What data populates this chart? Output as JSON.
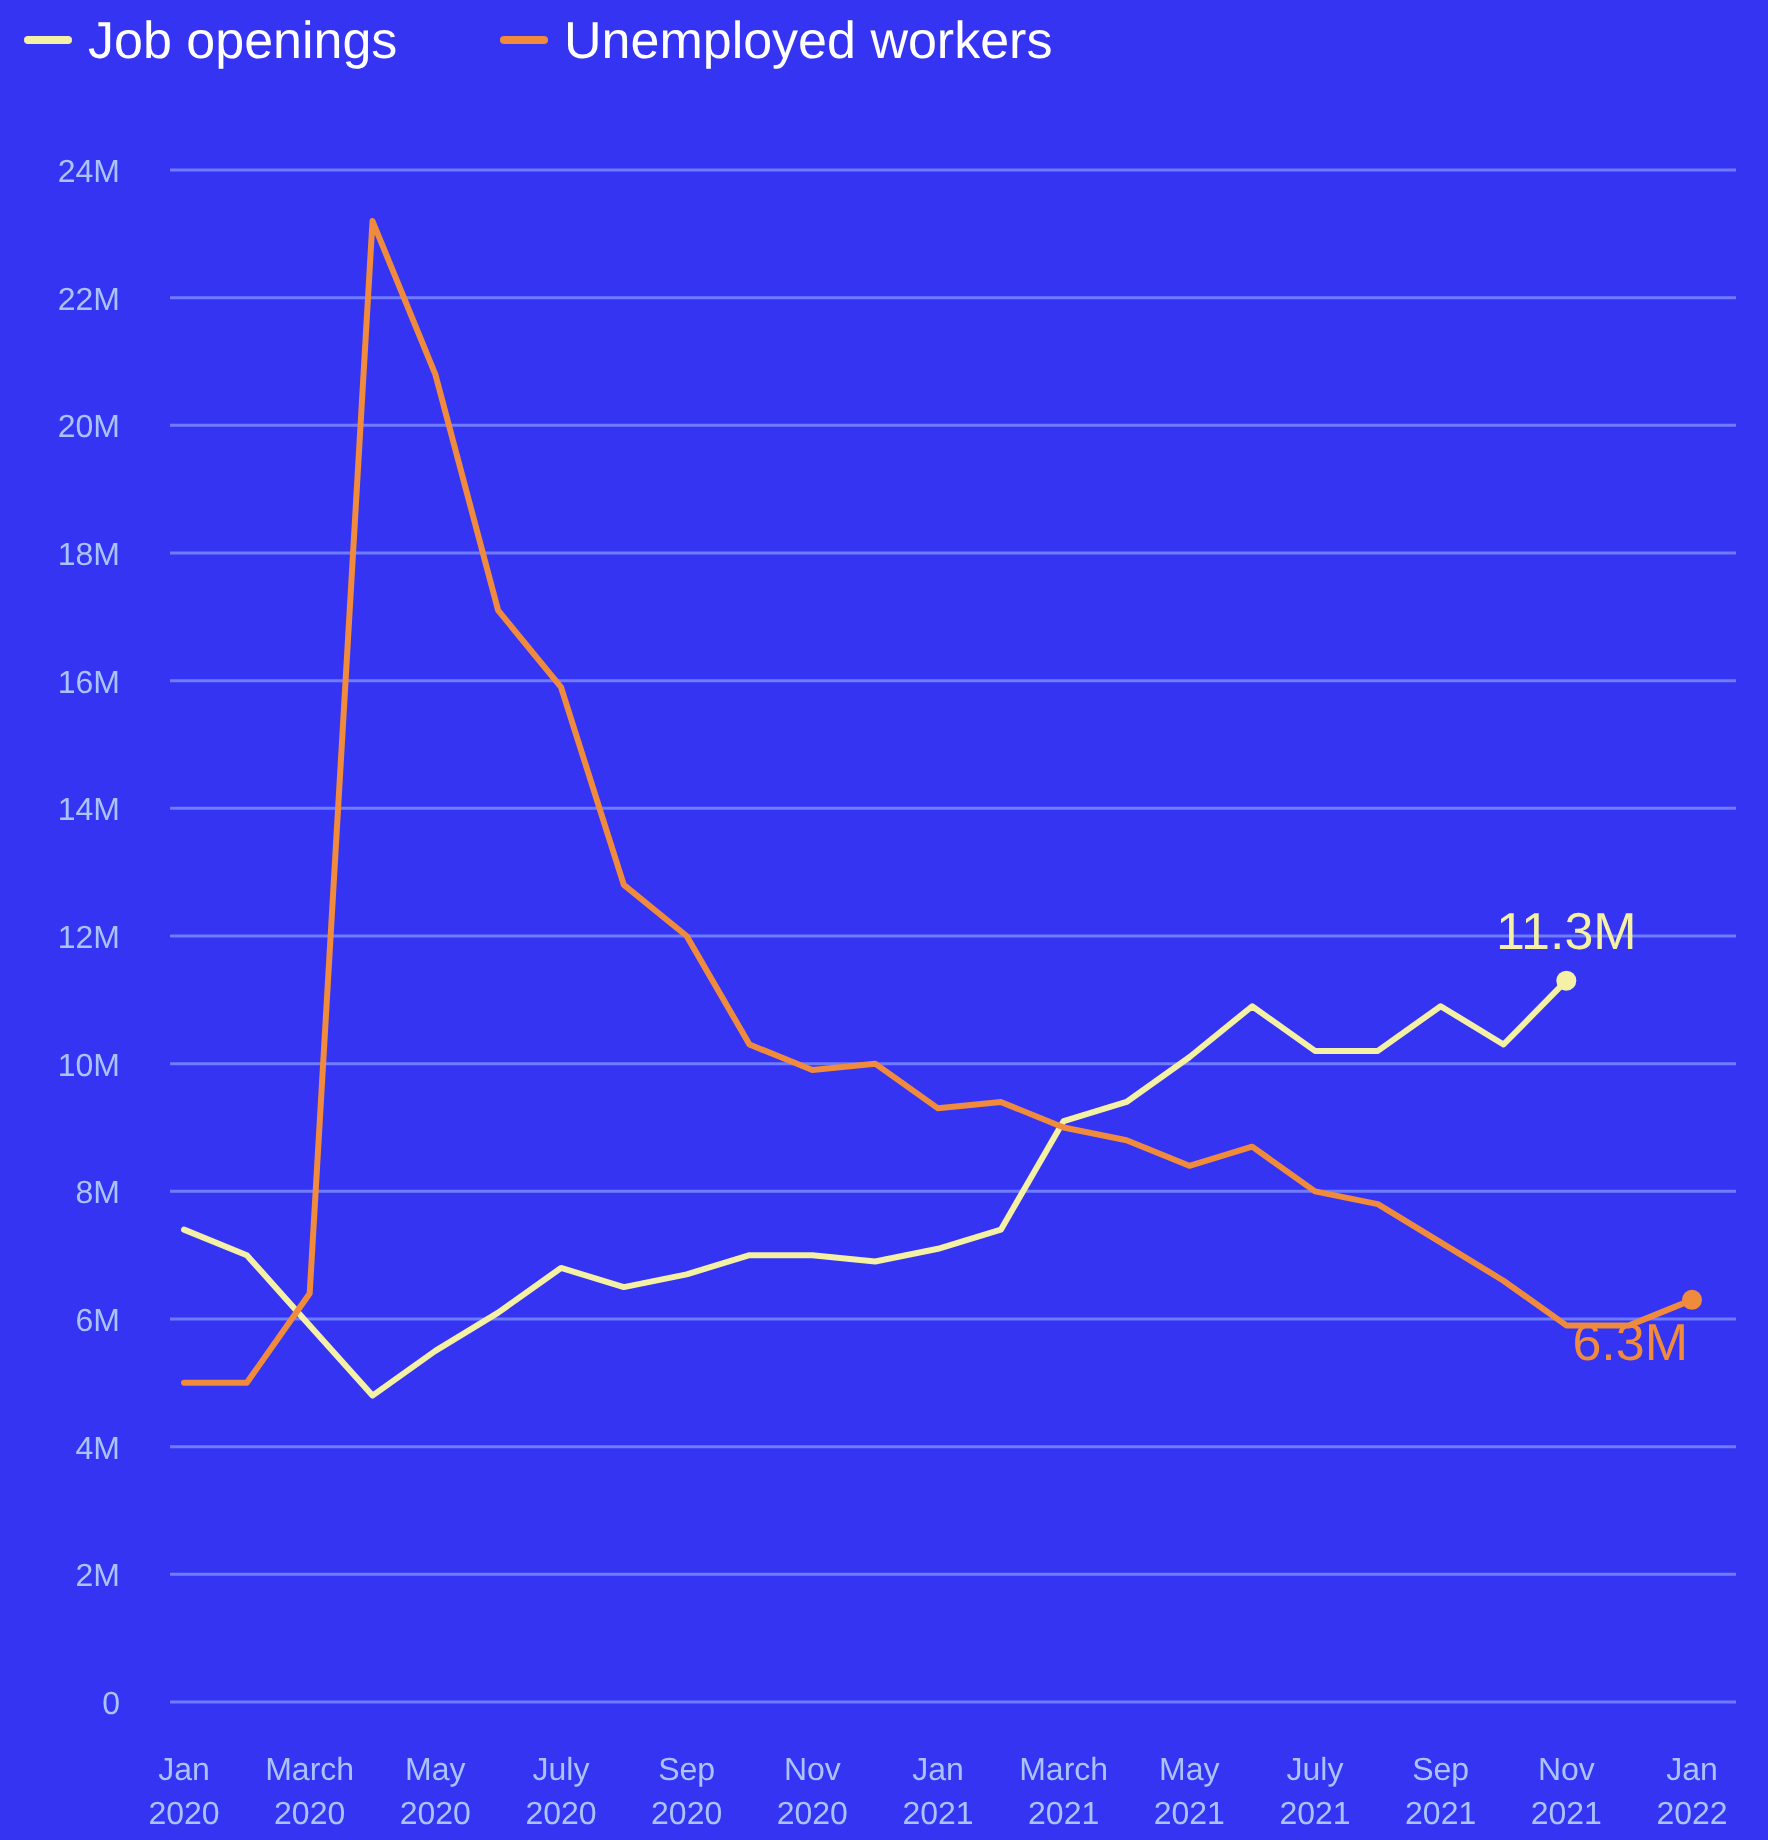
{
  "chart_data": {
    "type": "line",
    "categories": [
      "Jan 2020",
      null,
      "March 2020",
      null,
      "May 2020",
      null,
      "July 2020",
      null,
      "Sep 2020",
      null,
      "Nov 2020",
      null,
      "Jan 2021",
      null,
      "March 2021",
      null,
      "May 2021",
      null,
      "July 2021",
      null,
      "Sep 2021",
      null,
      "Nov 2021",
      null,
      "Jan 2022"
    ],
    "series": [
      {
        "name": "Job openings",
        "color": "#f4f0a6",
        "values": [
          7.4,
          7.0,
          5.9,
          4.8,
          5.5,
          6.1,
          6.8,
          6.5,
          6.7,
          7.0,
          7.0,
          6.9,
          7.1,
          7.4,
          9.1,
          9.4,
          10.1,
          10.9,
          10.2,
          10.2,
          10.9,
          10.3,
          11.3,
          null,
          null
        ],
        "value_labels": [
          null,
          null,
          null,
          null,
          null,
          null,
          null,
          null,
          null,
          null,
          null,
          null,
          null,
          null,
          null,
          null,
          null,
          null,
          null,
          null,
          null,
          null,
          "11.3M",
          null,
          null
        ]
      },
      {
        "name": "Unemployed workers",
        "color": "#f08a3c",
        "values": [
          5.0,
          5.0,
          6.4,
          23.2,
          20.8,
          17.1,
          15.9,
          12.8,
          12.0,
          10.3,
          9.9,
          10.0,
          9.3,
          9.4,
          9.0,
          8.8,
          8.4,
          8.7,
          8.0,
          7.8,
          7.2,
          6.6,
          5.9,
          5.9,
          6.3
        ],
        "value_labels": [
          null,
          null,
          null,
          null,
          null,
          null,
          null,
          null,
          null,
          null,
          null,
          null,
          null,
          null,
          null,
          null,
          null,
          null,
          null,
          null,
          null,
          null,
          null,
          null,
          "6.3M"
        ]
      }
    ],
    "ylim": [
      0,
      24
    ],
    "yticks": [
      {
        "value": 0,
        "label": "0"
      },
      {
        "value": 2,
        "label": "2M"
      },
      {
        "value": 4,
        "label": "4M"
      },
      {
        "value": 6,
        "label": "6M"
      },
      {
        "value": 8,
        "label": "8M"
      },
      {
        "value": 10,
        "label": "10M"
      },
      {
        "value": 12,
        "label": "12M"
      },
      {
        "value": 14,
        "label": "14M"
      },
      {
        "value": 16,
        "label": "16M"
      },
      {
        "value": 18,
        "label": "18M"
      },
      {
        "value": 20,
        "label": "20M"
      },
      {
        "value": 22,
        "label": "22M"
      },
      {
        "value": 24,
        "label": "24M"
      }
    ],
    "grid": "y",
    "legend": "top left",
    "marker": "none",
    "line_style": "solid"
  }
}
